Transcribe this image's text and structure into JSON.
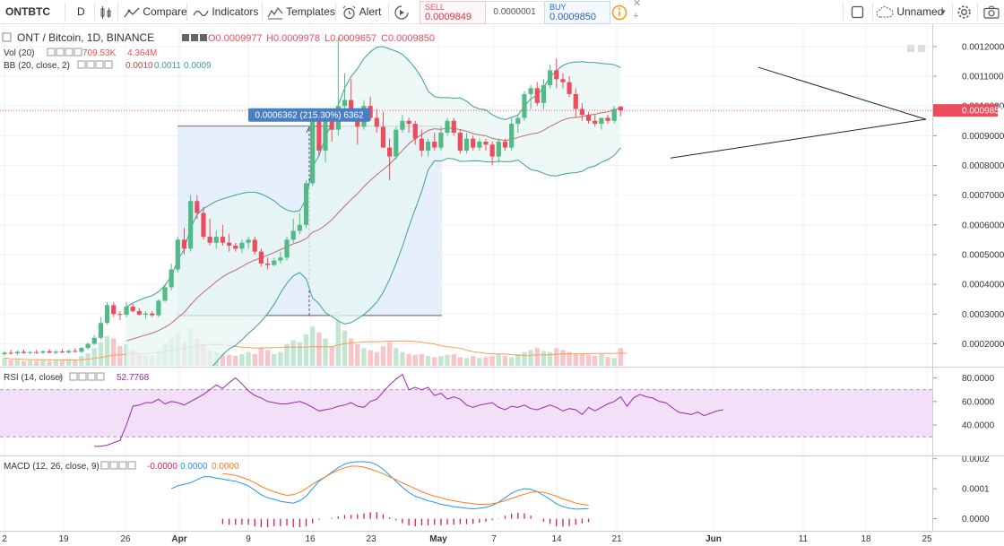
{
  "toolbar": {
    "symbol": "ONTBTC",
    "interval": "D",
    "compare": "Compare",
    "indicators": "Indicators",
    "templates": "Templates",
    "alert": "Alert",
    "sell_label": "SELL",
    "sell_price": "0.0009849",
    "spread": "0.0000001",
    "buy_label": "BUY",
    "buy_price": "0.0009850",
    "layout_name": "Unnamed"
  },
  "legend": {
    "main_title": "ONT / Bitcoin, 1D, BINANCE",
    "o": "O0.0009977",
    "h": "H0.0009978",
    "l": "L0.0009657",
    "c": "C0.0009850",
    "vol_label": "Vol (20)",
    "vol_v1": "709.53K",
    "vol_v2": "4.364M",
    "bb_label": "BB (20, close, 2)",
    "bb_v1": "0.0010",
    "bb_v2": "0.0011",
    "bb_v3": "0.0009",
    "rsi_label": "RSI (14, close)",
    "rsi_value": "52.7768",
    "macd_label": "MACD (12, 26, close, 9)",
    "macd_v1": "-0.0000",
    "macd_v2": "0.0000",
    "macd_v3": "0.0000"
  },
  "colors": {
    "up": "#53b987",
    "down": "#eb4d5c",
    "vol_up": "#c3e6d2",
    "vol_down": "#f7c5ca",
    "bb_line": "#3d9e97",
    "bb_fill": "#e7f6f4",
    "bb_basis": "#b04a4a",
    "rsi_line": "#9c27b0",
    "rsi_fill": "#f1e0f7",
    "macd_line": "#2196f3",
    "signal_line": "#ff7a1a",
    "hist": "#d81b60",
    "measure_fill": "#dcebfb",
    "measure_label_bg": "#4a7ec4",
    "price_label_bg": "#eb4d5c"
  },
  "chart_data": [
    {
      "type": "candlestick",
      "title": "ONT / Bitcoin, 1D, BINANCE",
      "x_ticks": [
        "2",
        "19",
        "26",
        "Apr",
        "9",
        "16",
        "23",
        "May",
        "7",
        "14",
        "21",
        "Jun",
        "11",
        "18",
        "25"
      ],
      "y_ticks": [
        "0.0012000",
        "0.0011000",
        "0.0010000",
        "0.0009000",
        "0.0008000",
        "0.0007000",
        "0.0006000",
        "0.0005000",
        "0.0004000",
        "0.0003000",
        "0.0002000"
      ],
      "ylim": [
        0.000126,
        0.001275
      ],
      "last_price": 0.000985,
      "last_price_label": "0.0009850",
      "measure_label": "0.0006362 (215.30%) 6362",
      "measure_range": [
        0.000295,
        0.000932
      ],
      "trendline_upper": [
        [
          0.00113,
          0.001
        ],
        [
          0.000955,
          0.001
        ]
      ],
      "trendline_lower": [
        [
          0.000825,
          0.000935
        ],
        [
          0.000955,
          0.001
        ]
      ],
      "candles": [
        {
          "o": 0.000165,
          "h": 0.000175,
          "l": 0.00016,
          "c": 0.00017
        },
        {
          "o": 0.00017,
          "h": 0.00018,
          "l": 0.000163,
          "c": 0.000168
        },
        {
          "o": 0.000168,
          "h": 0.000178,
          "l": 0.000162,
          "c": 0.000173
        },
        {
          "o": 0.000173,
          "h": 0.00018,
          "l": 0.000166,
          "c": 0.000169
        },
        {
          "o": 0.000169,
          "h": 0.000176,
          "l": 0.000164,
          "c": 0.000172
        },
        {
          "o": 0.000172,
          "h": 0.00018,
          "l": 0.000166,
          "c": 0.00017
        },
        {
          "o": 0.00017,
          "h": 0.000178,
          "l": 0.000165,
          "c": 0.000175
        },
        {
          "o": 0.000175,
          "h": 0.000182,
          "l": 0.000168,
          "c": 0.00017
        },
        {
          "o": 0.00017,
          "h": 0.000178,
          "l": 0.000165,
          "c": 0.000174
        },
        {
          "o": 0.000174,
          "h": 0.000182,
          "l": 0.000168,
          "c": 0.000171
        },
        {
          "o": 0.000171,
          "h": 0.00018,
          "l": 0.000166,
          "c": 0.000176
        },
        {
          "o": 0.000176,
          "h": 0.000185,
          "l": 0.00017,
          "c": 0.000173
        },
        {
          "o": 0.000173,
          "h": 0.00019,
          "l": 0.00017,
          "c": 0.000186
        },
        {
          "o": 0.000186,
          "h": 0.000205,
          "l": 0.00018,
          "c": 0.0002
        },
        {
          "o": 0.0002,
          "h": 0.00023,
          "l": 0.000195,
          "c": 0.00022
        },
        {
          "o": 0.00022,
          "h": 0.00029,
          "l": 0.000215,
          "c": 0.00027
        },
        {
          "o": 0.00027,
          "h": 0.00034,
          "l": 0.000265,
          "c": 0.00033
        },
        {
          "o": 0.00033,
          "h": 0.00034,
          "l": 0.00029,
          "c": 0.0003
        },
        {
          "o": 0.0003,
          "h": 0.00031,
          "l": 0.00028,
          "c": 0.000298
        },
        {
          "o": 0.000298,
          "h": 0.00034,
          "l": 0.00029,
          "c": 0.000325
        },
        {
          "o": 0.000325,
          "h": 0.000335,
          "l": 0.000305,
          "c": 0.00031
        },
        {
          "o": 0.00031,
          "h": 0.00032,
          "l": 0.000295,
          "c": 0.000298
        },
        {
          "o": 0.000298,
          "h": 0.00031,
          "l": 0.000285,
          "c": 0.000302
        },
        {
          "o": 0.000302,
          "h": 0.00031,
          "l": 0.00029,
          "c": 0.000296
        },
        {
          "o": 0.000296,
          "h": 0.00035,
          "l": 0.00029,
          "c": 0.000345
        },
        {
          "o": 0.000345,
          "h": 0.0004,
          "l": 0.00034,
          "c": 0.00039
        },
        {
          "o": 0.00039,
          "h": 0.00047,
          "l": 0.00038,
          "c": 0.00045
        },
        {
          "o": 0.00045,
          "h": 0.00056,
          "l": 0.00044,
          "c": 0.00055
        },
        {
          "o": 0.00055,
          "h": 0.00059,
          "l": 0.0005,
          "c": 0.00052
        },
        {
          "o": 0.00052,
          "h": 0.0007,
          "l": 0.00051,
          "c": 0.00068
        },
        {
          "o": 0.00068,
          "h": 0.0007,
          "l": 0.00062,
          "c": 0.00064
        },
        {
          "o": 0.00064,
          "h": 0.00066,
          "l": 0.00055,
          "c": 0.00056
        },
        {
          "o": 0.00056,
          "h": 0.00062,
          "l": 0.00053,
          "c": 0.00054
        },
        {
          "o": 0.00054,
          "h": 0.00058,
          "l": 0.00052,
          "c": 0.00056
        },
        {
          "o": 0.00056,
          "h": 0.0006,
          "l": 0.00053,
          "c": 0.00054
        },
        {
          "o": 0.00054,
          "h": 0.00057,
          "l": 0.00051,
          "c": 0.00053
        },
        {
          "o": 0.00053,
          "h": 0.00054,
          "l": 0.00051,
          "c": 0.00052
        },
        {
          "o": 0.00052,
          "h": 0.00055,
          "l": 0.000505,
          "c": 0.00054
        },
        {
          "o": 0.00054,
          "h": 0.00056,
          "l": 0.00052,
          "c": 0.00055
        },
        {
          "o": 0.00055,
          "h": 0.00056,
          "l": 0.0005,
          "c": 0.00051
        },
        {
          "o": 0.00051,
          "h": 0.00052,
          "l": 0.00046,
          "c": 0.00047
        },
        {
          "o": 0.00047,
          "h": 0.00049,
          "l": 0.00045,
          "c": 0.000465
        },
        {
          "o": 0.000465,
          "h": 0.00049,
          "l": 0.00046,
          "c": 0.00048
        },
        {
          "o": 0.00048,
          "h": 0.00051,
          "l": 0.00047,
          "c": 0.00049
        },
        {
          "o": 0.00049,
          "h": 0.00056,
          "l": 0.00048,
          "c": 0.00055
        },
        {
          "o": 0.00055,
          "h": 0.00062,
          "l": 0.00054,
          "c": 0.00058
        },
        {
          "o": 0.00058,
          "h": 0.00064,
          "l": 0.00057,
          "c": 0.0006
        },
        {
          "o": 0.0006,
          "h": 0.00075,
          "l": 0.00059,
          "c": 0.00074
        },
        {
          "o": 0.00074,
          "h": 0.00097,
          "l": 0.00073,
          "c": 0.00096
        },
        {
          "o": 0.00096,
          "h": 0.00099,
          "l": 0.00083,
          "c": 0.00085
        },
        {
          "o": 0.00085,
          "h": 0.00097,
          "l": 0.00081,
          "c": 0.00095
        },
        {
          "o": 0.00095,
          "h": 0.00097,
          "l": 0.00088,
          "c": 0.00092
        },
        {
          "o": 0.00092,
          "h": 0.00123,
          "l": 0.0009,
          "c": 0.001
        },
        {
          "o": 0.001,
          "h": 0.00111,
          "l": 0.00097,
          "c": 0.00102
        },
        {
          "o": 0.00102,
          "h": 0.00109,
          "l": 0.00095,
          "c": 0.00097
        },
        {
          "o": 0.00097,
          "h": 0.00099,
          "l": 0.00087,
          "c": 0.00093
        },
        {
          "o": 0.00093,
          "h": 0.00102,
          "l": 0.00092,
          "c": 0.001
        },
        {
          "o": 0.001,
          "h": 0.00103,
          "l": 0.00095,
          "c": 0.00096
        },
        {
          "o": 0.00096,
          "h": 0.00099,
          "l": 0.00091,
          "c": 0.00093
        },
        {
          "o": 0.00093,
          "h": 0.00098,
          "l": 0.00087,
          "c": 0.00086
        },
        {
          "o": 0.00086,
          "h": 0.00089,
          "l": 0.00075,
          "c": 0.00083
        },
        {
          "o": 0.00083,
          "h": 0.00093,
          "l": 0.00082,
          "c": 0.00092
        },
        {
          "o": 0.00092,
          "h": 0.00097,
          "l": 0.00091,
          "c": 0.00095
        },
        {
          "o": 0.00095,
          "h": 0.00096,
          "l": 0.00091,
          "c": 0.00094
        },
        {
          "o": 0.00094,
          "h": 0.00095,
          "l": 0.00087,
          "c": 0.00089
        },
        {
          "o": 0.00089,
          "h": 0.00092,
          "l": 0.00083,
          "c": 0.00085
        },
        {
          "o": 0.00085,
          "h": 0.00089,
          "l": 0.00083,
          "c": 0.00088
        },
        {
          "o": 0.00088,
          "h": 0.00091,
          "l": 0.00085,
          "c": 0.00086
        },
        {
          "o": 0.00086,
          "h": 0.00093,
          "l": 0.00085,
          "c": 0.00091
        },
        {
          "o": 0.00091,
          "h": 0.00096,
          "l": 0.0009,
          "c": 0.00095
        },
        {
          "o": 0.00095,
          "h": 0.00096,
          "l": 0.0009,
          "c": 0.00091
        },
        {
          "o": 0.00091,
          "h": 0.00092,
          "l": 0.00084,
          "c": 0.00085
        },
        {
          "o": 0.00085,
          "h": 0.00091,
          "l": 0.00084,
          "c": 0.00089
        },
        {
          "o": 0.00089,
          "h": 0.0009,
          "l": 0.00085,
          "c": 0.00086
        },
        {
          "o": 0.00086,
          "h": 0.00089,
          "l": 0.00085,
          "c": 0.00088
        },
        {
          "o": 0.00088,
          "h": 0.00089,
          "l": 0.00085,
          "c": 0.00087
        },
        {
          "o": 0.00087,
          "h": 0.00088,
          "l": 0.0008,
          "c": 0.00083
        },
        {
          "o": 0.00083,
          "h": 0.00089,
          "l": 0.00081,
          "c": 0.00088
        },
        {
          "o": 0.00088,
          "h": 0.00089,
          "l": 0.00085,
          "c": 0.00086
        },
        {
          "o": 0.00086,
          "h": 0.00096,
          "l": 0.00085,
          "c": 0.00094
        },
        {
          "o": 0.00094,
          "h": 0.00097,
          "l": 0.00091,
          "c": 0.00096
        },
        {
          "o": 0.00096,
          "h": 0.00105,
          "l": 0.00095,
          "c": 0.00104
        },
        {
          "o": 0.00104,
          "h": 0.00107,
          "l": 0.00099,
          "c": 0.00106
        },
        {
          "o": 0.00106,
          "h": 0.00108,
          "l": 0.001,
          "c": 0.00101
        },
        {
          "o": 0.00101,
          "h": 0.00109,
          "l": 0.00099,
          "c": 0.00107
        },
        {
          "o": 0.00107,
          "h": 0.00114,
          "l": 0.00106,
          "c": 0.00112
        },
        {
          "o": 0.00112,
          "h": 0.00116,
          "l": 0.00106,
          "c": 0.00109
        },
        {
          "o": 0.00109,
          "h": 0.00111,
          "l": 0.00106,
          "c": 0.00108
        },
        {
          "o": 0.00108,
          "h": 0.0011,
          "l": 0.00103,
          "c": 0.00104
        },
        {
          "o": 0.00104,
          "h": 0.00106,
          "l": 0.00096,
          "c": 0.00099
        },
        {
          "o": 0.00099,
          "h": 0.00101,
          "l": 0.00095,
          "c": 0.00097
        },
        {
          "o": 0.00097,
          "h": 0.00098,
          "l": 0.00094,
          "c": 0.00095
        },
        {
          "o": 0.00095,
          "h": 0.00097,
          "l": 0.00093,
          "c": 0.00094
        },
        {
          "o": 0.00094,
          "h": 0.00096,
          "l": 0.00092,
          "c": 0.00096
        },
        {
          "o": 0.00096,
          "h": 0.00097,
          "l": 0.00094,
          "c": 0.00095
        },
        {
          "o": 0.00095,
          "h": 0.001,
          "l": 0.00094,
          "c": 0.00099
        },
        {
          "o": 0.000998,
          "h": 0.000998,
          "l": 0.000966,
          "c": 0.000985
        }
      ],
      "volume": [
        0.2,
        0.15,
        0.18,
        0.12,
        0.14,
        0.13,
        0.16,
        0.12,
        0.15,
        0.13,
        0.17,
        0.14,
        0.25,
        0.32,
        0.45,
        0.6,
        0.75,
        0.7,
        0.5,
        0.55,
        0.4,
        0.3,
        0.28,
        0.25,
        0.4,
        0.55,
        0.7,
        0.85,
        0.6,
        0.95,
        0.7,
        0.55,
        0.4,
        0.35,
        0.3,
        0.28,
        0.25,
        0.3,
        0.35,
        0.3,
        0.45,
        0.4,
        0.3,
        0.35,
        0.55,
        0.65,
        0.6,
        0.8,
        1.0,
        0.85,
        0.7,
        0.5,
        1.4,
        0.9,
        0.7,
        0.55,
        0.45,
        0.4,
        0.35,
        0.5,
        0.6,
        0.45,
        0.35,
        0.3,
        0.28,
        0.3,
        0.25,
        0.22,
        0.25,
        0.28,
        0.3,
        0.22,
        0.2,
        0.25,
        0.2,
        0.22,
        0.25,
        0.3,
        0.25,
        0.22,
        0.3,
        0.35,
        0.4,
        0.45,
        0.38,
        0.35,
        0.45,
        0.4,
        0.35,
        0.3,
        0.32,
        0.28,
        0.25,
        0.3,
        0.22,
        0.2,
        0.45,
        0.15
      ],
      "volume_ylim": [
        0,
        3.2
      ]
    },
    {
      "type": "line",
      "title": "RSI (14, close)",
      "y_ticks": [
        "80.0000",
        "60.0000",
        "40.0000"
      ],
      "ylim": [
        15,
        88
      ],
      "bands": [
        30,
        70
      ],
      "start_index": 14,
      "values": [
        22,
        22,
        23,
        25,
        27,
        40,
        56,
        57,
        59,
        59,
        62,
        58,
        60,
        59,
        57,
        60,
        63,
        66,
        70,
        74,
        71,
        76,
        80,
        75,
        69,
        65,
        63,
        60,
        59,
        58,
        58,
        59,
        60,
        58,
        55,
        52,
        53,
        54,
        56,
        57,
        59,
        56,
        55,
        60,
        62,
        68,
        74,
        79,
        83,
        70,
        72,
        70,
        72,
        65,
        67,
        62,
        64,
        62,
        57,
        55,
        57,
        58,
        59,
        55,
        53,
        56,
        55,
        57,
        54,
        53,
        55,
        57,
        55,
        52,
        54,
        53,
        49,
        55,
        52,
        55,
        58,
        60,
        64,
        56,
        63,
        66,
        64,
        63,
        60,
        59,
        55,
        51,
        50,
        49,
        51,
        48,
        50,
        52,
        53
      ]
    },
    {
      "type": "line",
      "title": "MACD (12, 26, close, 9)",
      "y_ticks": [
        "0.0002",
        "0.0001",
        "0.0000"
      ],
      "ylim": [
        -4e-05,
        0.000205
      ],
      "macd_start": 26,
      "signal_start": 34,
      "macd": [
        0.0001,
        0.00011,
        0.000115,
        0.00012,
        0.00013,
        0.00014,
        0.00014,
        0.000135,
        0.000132,
        0.000128,
        0.000125,
        0.000118,
        0.00011,
        9.5e-05,
        8e-05,
        7e-05,
        6.5e-05,
        5.8e-05,
        5.5e-05,
        5.2e-05,
        6e-05,
        7.5e-05,
        0.0001,
        0.000125,
        0.00014,
        0.000155,
        0.00017,
        0.000182,
        0.000188,
        0.00019,
        0.00019,
        0.000188,
        0.00018,
        0.000165,
        0.000145,
        0.000125,
        0.000105,
        8.8e-05,
        7.5e-05,
        6.8e-05,
        6e-05,
        5.5e-05,
        4.8e-05,
        4.5e-05,
        4e-05,
        3.8e-05,
        3.5e-05,
        3.3e-05,
        3.5e-05,
        3.8e-05,
        4.5e-05,
        5.5e-05,
        7e-05,
        8.5e-05,
        9.5e-05,
        0.0001,
        9.8e-05,
        9e-05,
        7.8e-05,
        6.5e-05,
        5e-05,
        4e-05,
        3.5e-05,
        3.2e-05,
        3.3e-05,
        3.4e-05
      ],
      "signal": [
        0.00015,
        0.000148,
        0.000145,
        0.000138,
        0.00013,
        0.00012,
        0.000108,
        9.8e-05,
        9e-05,
        8.3e-05,
        7.8e-05,
        8e-05,
        8.8e-05,
        0.0001,
        0.000115,
        0.000128,
        0.00014,
        0.000152,
        0.000162,
        0.00017,
        0.000175,
        0.000175,
        0.000172,
        0.000166,
        0.000158,
        0.00015,
        0.00014,
        0.00013,
        0.00012,
        0.00011,
        0.0001,
        9e-05,
        8.2e-05,
        7.5e-05,
        7e-05,
        6.4e-05,
        6e-05,
        5.6e-05,
        5.3e-05,
        5e-05,
        4.8e-05,
        4.8e-05,
        5e-05,
        5.4e-05,
        6e-05,
        6.8e-05,
        7.5e-05,
        8.2e-05,
        8.8e-05,
        9e-05,
        8.8e-05,
        8.2e-05,
        7.5e-05,
        6.6e-05,
        6e-05,
        5.2e-05,
        4.8e-05,
        4.5e-05
      ]
    }
  ]
}
